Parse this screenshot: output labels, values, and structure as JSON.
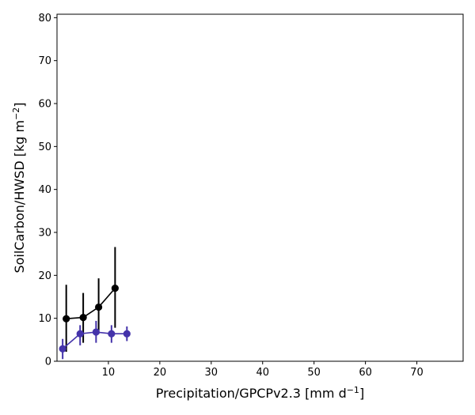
{
  "chart_data": {
    "type": "line",
    "xlabel": "Precipitation/GPCPv2.3 [mm d",
    "xlabel_sup": "−1",
    "xlabel_suffix": "]",
    "ylabel": "SoilCarbon/HWSD [kg m",
    "ylabel_sup": "−2",
    "ylabel_suffix": "]",
    "xlim": [
      0,
      79
    ],
    "ylim": [
      0,
      80.8
    ],
    "xticks": [
      10,
      20,
      30,
      40,
      50,
      60,
      70
    ],
    "yticks": [
      0,
      10,
      20,
      30,
      40,
      50,
      60,
      70,
      80
    ],
    "grid": false,
    "legend": "none",
    "series": [
      {
        "color": "#000000",
        "x": [
          1.8,
          5.1,
          8.1,
          11.3
        ],
        "y": [
          9.9,
          10.2,
          12.6,
          17.0
        ],
        "err_low": [
          2.2,
          4.3,
          6.4,
          7.8
        ],
        "err_high": [
          17.8,
          15.9,
          19.3,
          26.6
        ]
      },
      {
        "color": "#4433aa",
        "x": [
          1.1,
          4.5,
          7.6,
          10.6,
          13.6
        ],
        "y": [
          2.9,
          6.4,
          6.8,
          6.4,
          6.4
        ],
        "err_low": [
          0.5,
          3.7,
          4.3,
          4.3,
          4.7
        ],
        "err_high": [
          5.2,
          8.4,
          9.4,
          8.4,
          8.1
        ]
      }
    ]
  }
}
